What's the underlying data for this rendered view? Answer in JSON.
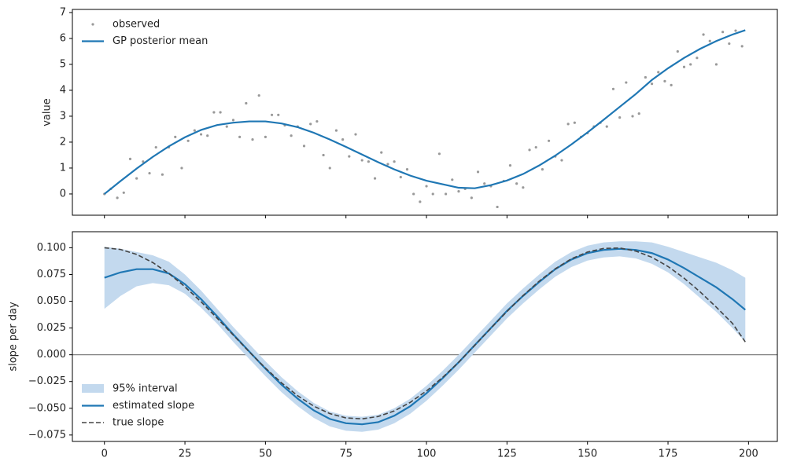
{
  "chart_data": [
    {
      "type": "line",
      "ylabel": "value",
      "xlim": [
        -9.95,
        208.95
      ],
      "ylim": [
        -0.82,
        7.12
      ],
      "xticks": [
        0,
        25,
        50,
        75,
        100,
        125,
        150,
        175,
        200
      ],
      "yticks": [
        0,
        1,
        2,
        3,
        4,
        5,
        6,
        7
      ],
      "sharex": true,
      "legend": "upper left",
      "series": [
        {
          "name": "observed",
          "kind": "points",
          "color": "#999999",
          "x": [
            0,
            2,
            4,
            6,
            8,
            10,
            12,
            14,
            16,
            18,
            20,
            22,
            24,
            26,
            28,
            30,
            32,
            34,
            36,
            38,
            40,
            42,
            44,
            46,
            48,
            50,
            52,
            54,
            56,
            58,
            60,
            62,
            64,
            66,
            68,
            70,
            72,
            74,
            76,
            78,
            80,
            82,
            84,
            86,
            88,
            90,
            92,
            94,
            96,
            98,
            100,
            102,
            104,
            106,
            108,
            110,
            112,
            114,
            116,
            118,
            120,
            122,
            124,
            126,
            128,
            130,
            132,
            134,
            136,
            138,
            140,
            142,
            144,
            146,
            148,
            150,
            152,
            154,
            156,
            158,
            160,
            162,
            164,
            166,
            168,
            170,
            172,
            174,
            176,
            178,
            180,
            182,
            184,
            186,
            188,
            190,
            192,
            194,
            196,
            198
          ],
          "values": [
            0.0,
            0.2,
            -0.15,
            0.05,
            1.35,
            0.6,
            1.25,
            0.8,
            1.8,
            0.75,
            1.8,
            2.2,
            1.0,
            2.05,
            2.45,
            2.3,
            2.25,
            3.15,
            3.15,
            2.6,
            2.85,
            2.2,
            3.5,
            2.1,
            3.8,
            2.2,
            3.05,
            3.05,
            2.65,
            2.25,
            2.6,
            1.85,
            2.7,
            2.8,
            1.5,
            1.0,
            2.45,
            2.1,
            1.45,
            2.3,
            1.3,
            1.25,
            0.6,
            1.6,
            1.15,
            1.25,
            0.65,
            0.95,
            0.0,
            -0.3,
            0.3,
            0.0,
            1.55,
            0.0,
            0.55,
            0.1,
            0.2,
            -0.15,
            0.85,
            0.4,
            0.3,
            -0.5,
            0.5,
            1.1,
            0.4,
            0.25,
            1.7,
            1.8,
            0.95,
            2.05,
            1.45,
            1.3,
            2.7,
            2.75,
            2.2,
            2.35,
            2.6,
            2.75,
            2.6,
            4.05,
            2.95,
            4.3,
            3.0,
            3.1,
            4.5,
            4.25,
            4.7,
            4.35,
            4.2,
            5.5,
            4.9,
            5.0,
            5.25,
            6.15,
            5.9,
            5.0,
            6.25,
            5.8,
            6.3,
            5.7
          ]
        },
        {
          "name": "GP posterior mean",
          "kind": "line",
          "color": "#1f77b4",
          "x": [
            0,
            5,
            10,
            15,
            20,
            25,
            30,
            35,
            40,
            45,
            50,
            55,
            60,
            65,
            70,
            75,
            80,
            85,
            90,
            95,
            100,
            105,
            110,
            115,
            120,
            125,
            130,
            135,
            140,
            145,
            150,
            155,
            160,
            165,
            170,
            175,
            180,
            185,
            190,
            195,
            199
          ],
          "values": [
            0,
            0.497,
            0.979,
            1.43,
            1.837,
            2.187,
            2.47,
            2.66,
            2.75,
            2.8,
            2.8,
            2.72,
            2.578,
            2.362,
            2.1,
            1.815,
            1.52,
            1.226,
            0.95,
            0.707,
            0.512,
            0.376,
            0.24,
            0.22,
            0.34,
            0.52,
            0.77,
            1.1,
            1.48,
            1.912,
            2.373,
            2.861,
            3.36,
            3.856,
            4.4,
            4.85,
            5.25,
            5.6,
            5.9,
            6.15,
            6.32
          ]
        }
      ]
    },
    {
      "type": "line",
      "ylabel": "slope per day",
      "xlim": [
        -9.95,
        208.95
      ],
      "ylim": [
        -0.081,
        0.115
      ],
      "xticks": [
        0,
        25,
        50,
        75,
        100,
        125,
        150,
        175,
        200
      ],
      "yticks": [
        {
          "value": 0.1,
          "label": "0.100"
        },
        {
          "value": 0.075,
          "label": "0.075"
        },
        {
          "value": 0.05,
          "label": "0.050"
        },
        {
          "value": 0.025,
          "label": "0.025"
        },
        {
          "value": 0,
          "label": "0.000"
        },
        {
          "value": -0.025,
          "label": "−0.025"
        },
        {
          "value": -0.05,
          "label": "−0.050"
        },
        {
          "value": -0.075,
          "label": "−0.075"
        }
      ],
      "hline": 0,
      "legend": "lower left",
      "series": [
        {
          "name": "95% interval",
          "kind": "band",
          "color": "#c3d9ee",
          "x": [
            0,
            5,
            10,
            15,
            20,
            25,
            30,
            35,
            40,
            45,
            50,
            55,
            60,
            65,
            70,
            75,
            80,
            85,
            90,
            95,
            100,
            105,
            110,
            115,
            120,
            125,
            130,
            135,
            140,
            145,
            150,
            155,
            160,
            165,
            170,
            175,
            180,
            185,
            190,
            195,
            199
          ],
          "lower": [
            0.043,
            0.055,
            0.064,
            0.067,
            0.065,
            0.057,
            0.044,
            0.029,
            0.012,
            -0.004,
            -0.02,
            -0.035,
            -0.048,
            -0.059,
            -0.067,
            -0.071,
            -0.072,
            -0.07,
            -0.064,
            -0.055,
            -0.043,
            -0.029,
            -0.014,
            0.002,
            0.018,
            0.034,
            0.048,
            0.061,
            0.073,
            0.082,
            0.088,
            0.091,
            0.092,
            0.09,
            0.085,
            0.077,
            0.066,
            0.053,
            0.04,
            0.025,
            0.012
          ],
          "upper": [
            0.101,
            0.099,
            0.096,
            0.093,
            0.087,
            0.075,
            0.06,
            0.043,
            0.026,
            0.01,
            -0.006,
            -0.021,
            -0.034,
            -0.045,
            -0.053,
            -0.057,
            -0.058,
            -0.056,
            -0.05,
            -0.041,
            -0.029,
            -0.015,
            0.0,
            0.016,
            0.032,
            0.048,
            0.062,
            0.075,
            0.087,
            0.096,
            0.102,
            0.105,
            0.106,
            0.106,
            0.105,
            0.101,
            0.096,
            0.091,
            0.086,
            0.079,
            0.072
          ]
        },
        {
          "name": "estimated slope",
          "kind": "line",
          "color": "#1f77b4",
          "x": [
            0,
            5,
            10,
            15,
            20,
            25,
            30,
            35,
            40,
            45,
            50,
            55,
            60,
            65,
            70,
            75,
            80,
            85,
            90,
            95,
            100,
            105,
            110,
            115,
            120,
            125,
            130,
            135,
            140,
            145,
            150,
            155,
            160,
            165,
            170,
            175,
            180,
            185,
            190,
            195,
            199
          ],
          "values": [
            0.072,
            0.077,
            0.08,
            0.08,
            0.076,
            0.066,
            0.052,
            0.036,
            0.019,
            0.003,
            -0.013,
            -0.028,
            -0.041,
            -0.052,
            -0.06,
            -0.064,
            -0.065,
            -0.063,
            -0.057,
            -0.048,
            -0.036,
            -0.022,
            -0.007,
            0.009,
            0.025,
            0.041,
            0.055,
            0.068,
            0.08,
            0.089,
            0.095,
            0.098,
            0.099,
            0.098,
            0.095,
            0.089,
            0.081,
            0.072,
            0.063,
            0.052,
            0.042
          ]
        },
        {
          "name": "true slope",
          "kind": "line",
          "dashed": true,
          "color": "#444444",
          "x": [
            0,
            5,
            10,
            15,
            20,
            25,
            30,
            35,
            40,
            45,
            50,
            55,
            60,
            65,
            70,
            75,
            80,
            85,
            90,
            95,
            100,
            105,
            110,
            115,
            120,
            125,
            130,
            135,
            140,
            145,
            150,
            155,
            160,
            165,
            170,
            175,
            180,
            185,
            190,
            195,
            199
          ],
          "values": [
            0.1,
            0.0984,
            0.0938,
            0.0862,
            0.076,
            0.0636,
            0.0495,
            0.0342,
            0.0184,
            0.0026,
            -0.0124,
            -0.0263,
            -0.0383,
            -0.048,
            -0.055,
            -0.059,
            -0.0599,
            -0.0577,
            -0.0525,
            -0.0444,
            -0.0338,
            -0.0212,
            -0.007,
            0.0088,
            0.0248,
            0.0404,
            0.0554,
            0.0688,
            0.0804,
            0.0897,
            0.096,
            0.0994,
            0.0998,
            0.0969,
            0.0911,
            0.0825,
            0.0716,
            0.0587,
            0.0445,
            0.0294,
            0.012
          ]
        }
      ]
    }
  ]
}
